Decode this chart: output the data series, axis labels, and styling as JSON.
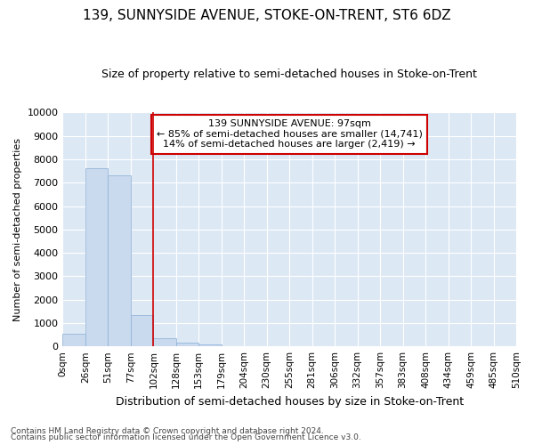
{
  "title": "139, SUNNYSIDE AVENUE, STOKE-ON-TRENT, ST6 6DZ",
  "subtitle": "Size of property relative to semi-detached houses in Stoke-on-Trent",
  "xlabel": "Distribution of semi-detached houses by size in Stoke-on-Trent",
  "ylabel": "Number of semi-detached properties",
  "footnote1": "Contains HM Land Registry data © Crown copyright and database right 2024.",
  "footnote2": "Contains public sector information licensed under the Open Government Licence v3.0.",
  "bar_values": [
    550,
    7600,
    7300,
    1350,
    350,
    150,
    100,
    0,
    0,
    0,
    0,
    0,
    0,
    0,
    0,
    0,
    0,
    0,
    0,
    0
  ],
  "bar_color": "#c9d9ee",
  "bar_edge_color": "#8aafd4",
  "x_labels": [
    "0sqm",
    "26sqm",
    "51sqm",
    "77sqm",
    "102sqm",
    "128sqm",
    "153sqm",
    "179sqm",
    "204sqm",
    "230sqm",
    "255sqm",
    "281sqm",
    "306sqm",
    "332sqm",
    "357sqm",
    "383sqm",
    "408sqm",
    "434sqm",
    "459sqm",
    "485sqm",
    "510sqm"
  ],
  "ylim": [
    0,
    10000
  ],
  "yticks": [
    0,
    1000,
    2000,
    3000,
    4000,
    5000,
    6000,
    7000,
    8000,
    9000,
    10000
  ],
  "red_line_x": 4.0,
  "annotation_text": "139 SUNNYSIDE AVENUE: 97sqm\n← 85% of semi-detached houses are smaller (14,741)\n14% of semi-detached houses are larger (2,419) →",
  "annotation_box_color": "#ffffff",
  "annotation_border_color": "#cc0000",
  "fig_bg_color": "#ffffff",
  "plot_bg_color": "#dde8f5",
  "grid_color": "#ffffff"
}
